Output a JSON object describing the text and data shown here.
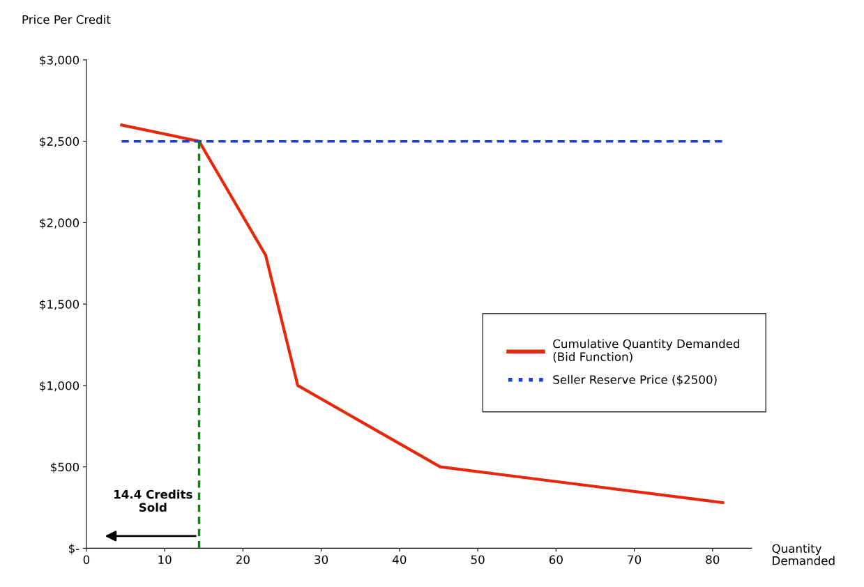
{
  "chart_data": {
    "type": "line",
    "ylabel": "Price Per Credit",
    "xlabel": "Quantity Demanded",
    "series": [
      {
        "name": "Cumulative Quantity Demanded\n(Bid Function)",
        "color": "#e8260a",
        "line_style": "solid",
        "x": [
          4.5,
          14.4,
          22.9,
          27,
          45.2,
          81.3
        ],
        "values": [
          2600,
          2500,
          1800,
          1000,
          500,
          280
        ]
      },
      {
        "name": "Seller Reserve Price ($2500)",
        "color": "#1a3ee0",
        "line_style": "dashed",
        "x": [
          4.5,
          81.3
        ],
        "values": [
          2500,
          2500
        ]
      },
      {
        "color": "#1a7a1a",
        "line_style": "dashed",
        "x": [
          14.4,
          14.4
        ],
        "values": [
          0,
          2500
        ]
      }
    ],
    "annotations": [
      "14.4 Credits\nSold"
    ],
    "xlim": [
      0,
      85
    ],
    "xticks": [
      0,
      10,
      20,
      30,
      40,
      50,
      60,
      70,
      80
    ],
    "ylim": [
      0,
      3000
    ],
    "yticks": [
      {
        "value": 0,
        "label": "$-"
      },
      {
        "value": 500,
        "label": "$500"
      },
      {
        "value": 1000,
        "label": "$1,000"
      },
      {
        "value": 1500,
        "label": "$1,500"
      },
      {
        "value": 2000,
        "label": "$2,000"
      },
      {
        "value": 2500,
        "label": "$2,500"
      },
      {
        "value": 3000,
        "label": "$3,000"
      }
    ],
    "legend": "right",
    "grid": false,
    "marker": "none"
  }
}
